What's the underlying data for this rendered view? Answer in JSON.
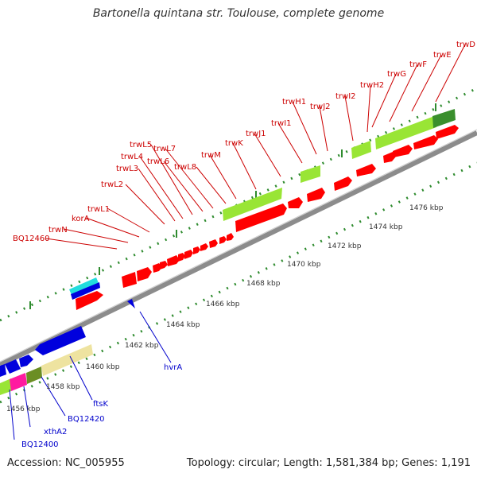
{
  "title": "Bartonella quintana str. Toulouse, complete genome",
  "footer": {
    "accession": "Accession: NC_005955",
    "summary": "Topology: circular; Length: 1,581,384 bp; Genes: 1,191"
  },
  "colors": {
    "backbone": "#8c8c8c",
    "forward_genes": "#ff0000",
    "reverse_genes": "#0000dd",
    "cds_green": "#99e535",
    "forward_label": "#cc0000",
    "reverse_label": "#0000cc",
    "tick_dots": "#2e8b2e"
  },
  "scale_labels": [
    "1456 kbp",
    "1458 kbp",
    "1460 kbp",
    "1462 kbp",
    "1464 kbp",
    "1466 kbp",
    "1468 kbp",
    "1470 kbp",
    "1472 kbp",
    "1474 kbp",
    "1476 kbp"
  ],
  "forward_labels": [
    "BQ12460",
    "trwN",
    "korA",
    "trwL1",
    "trwL2",
    "trwL3",
    "trwL4",
    "trwL5",
    "trwL6",
    "trwL7",
    "trwL8",
    "trwM",
    "trwK",
    "trwJ1",
    "trwI1",
    "trwH1",
    "trwJ2",
    "trwI2",
    "trwH2",
    "trwG",
    "trwF",
    "trwE",
    "trwD"
  ],
  "reverse_labels": [
    "BQ12400",
    "xthA2",
    "BQ12420",
    "ftsK",
    "hvrA"
  ]
}
